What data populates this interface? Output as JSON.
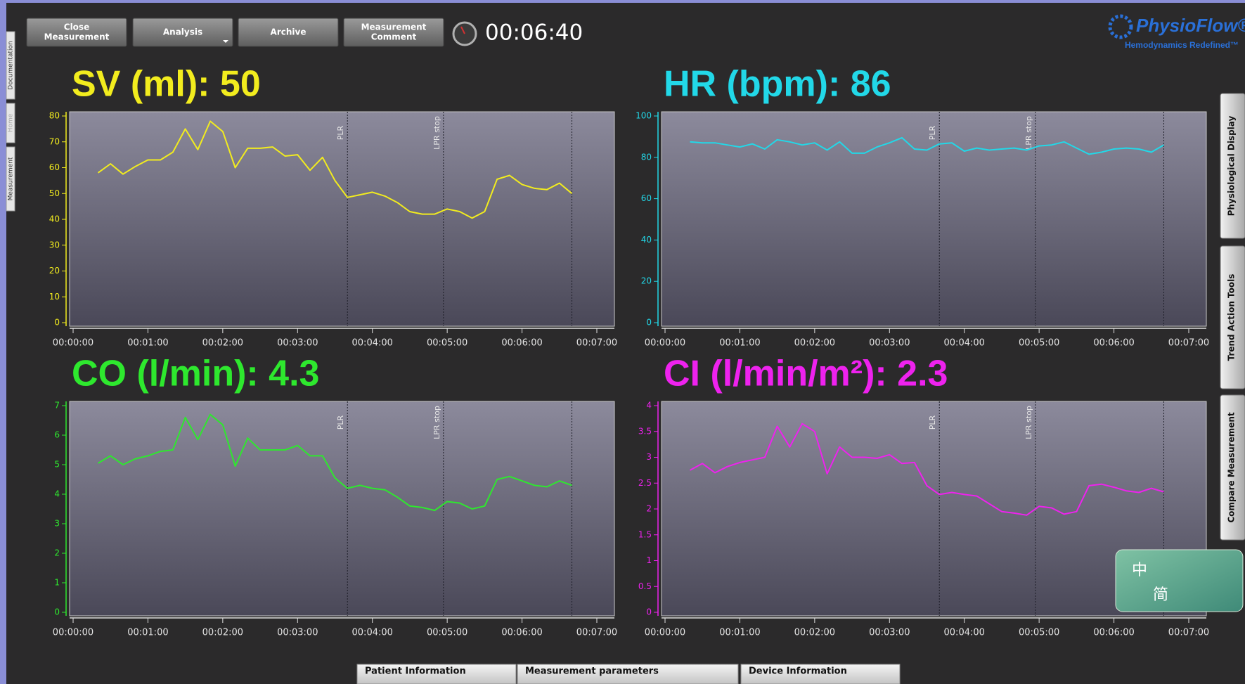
{
  "toolbar": {
    "buttons": [
      [
        "Close",
        "Measurement"
      ],
      [
        "Analysis"
      ],
      [
        "Archive"
      ],
      [
        "Measurement",
        "Comment"
      ]
    ],
    "timer": "00:06:40"
  },
  "logo": {
    "name": "PhysioFlow®",
    "tagline": "Hemodynamics Redefined™"
  },
  "left_tabs": [
    "Documentation",
    "Home",
    "Measurement"
  ],
  "right_tabs": [
    "Physiological Display",
    "Trend Action Tools",
    "Compare Measurement"
  ],
  "bottom_tabs": [
    "Patient Information",
    "Measurement parameters",
    "Device Information"
  ],
  "ime": [
    "中",
    "简"
  ],
  "chart_data": [
    {
      "type": "line",
      "title": "SV (ml): 50",
      "color": "#f2ec1e",
      "x": [
        20,
        30,
        40,
        50,
        60,
        70,
        80,
        90,
        100,
        110,
        120,
        130,
        140,
        150,
        160,
        170,
        180,
        190,
        200,
        210,
        220,
        230,
        240,
        250,
        260,
        270,
        280,
        290,
        300,
        310,
        320,
        330,
        340,
        350,
        360,
        370,
        380,
        390,
        400
      ],
      "values": [
        58,
        61.5,
        57.5,
        60.5,
        63,
        63,
        66,
        75,
        67,
        78,
        74,
        60,
        67.5,
        67.5,
        68,
        64.5,
        65,
        59,
        64,
        55,
        48.5,
        49.5,
        50.5,
        49,
        46.5,
        43,
        42,
        42,
        44,
        43,
        40.5,
        43,
        55.5,
        57,
        53.5,
        52,
        51.5,
        54,
        50
      ],
      "xlim": [
        0,
        420
      ],
      "xticks": [
        {
          "value": 0,
          "label": "00:00:00"
        },
        {
          "value": 60,
          "label": "00:01:00"
        },
        {
          "value": 120,
          "label": "00:02:00"
        },
        {
          "value": 180,
          "label": "00:03:00"
        },
        {
          "value": 240,
          "label": "00:04:00"
        },
        {
          "value": 300,
          "label": "00:05:00"
        },
        {
          "value": 360,
          "label": "00:06:00"
        },
        {
          "value": 420,
          "label": "00:07:00"
        }
      ],
      "ylim": [
        0,
        80
      ],
      "yticks": [
        0,
        10,
        20,
        30,
        40,
        50,
        60,
        70,
        80
      ],
      "markers": [
        {
          "label": "PLR",
          "x": 220
        },
        {
          "label": "LPR stop",
          "x": 297
        }
      ],
      "cursor_x": 400
    },
    {
      "type": "line",
      "title": "HR (bpm): 86",
      "color": "#22d8e8",
      "x": [
        20,
        30,
        40,
        50,
        60,
        70,
        80,
        90,
        100,
        110,
        120,
        130,
        140,
        150,
        160,
        170,
        180,
        190,
        200,
        210,
        220,
        230,
        240,
        250,
        260,
        270,
        280,
        290,
        300,
        310,
        320,
        330,
        340,
        350,
        360,
        370,
        380,
        390,
        400
      ],
      "values": [
        87.5,
        87,
        87,
        86,
        85,
        86.5,
        84,
        88.5,
        87.5,
        86,
        87,
        83.5,
        87.5,
        82,
        82,
        85,
        87,
        89.5,
        84,
        83.5,
        86.5,
        87,
        83,
        84.5,
        83.5,
        84,
        84.5,
        83.5,
        85.5,
        86,
        87.5,
        84.5,
        81.5,
        82.5,
        84,
        84.5,
        84,
        82.5,
        86
      ],
      "xlim": [
        0,
        420
      ],
      "xticks": [
        {
          "value": 0,
          "label": "00:00:00"
        },
        {
          "value": 60,
          "label": "00:01:00"
        },
        {
          "value": 120,
          "label": "00:02:00"
        },
        {
          "value": 180,
          "label": "00:03:00"
        },
        {
          "value": 240,
          "label": "00:04:00"
        },
        {
          "value": 300,
          "label": "00:05:00"
        },
        {
          "value": 360,
          "label": "00:06:00"
        },
        {
          "value": 420,
          "label": "00:07:00"
        }
      ],
      "ylim": [
        0,
        100
      ],
      "yticks": [
        0,
        20,
        40,
        60,
        80,
        100
      ],
      "markers": [
        {
          "label": "PLR",
          "x": 220
        },
        {
          "label": "LPR stop",
          "x": 297
        }
      ],
      "cursor_x": 400
    },
    {
      "type": "line",
      "title": "CO (l/min): 4.3",
      "color": "#2ee82e",
      "x": [
        20,
        30,
        40,
        50,
        60,
        70,
        80,
        90,
        100,
        110,
        120,
        130,
        140,
        150,
        160,
        170,
        180,
        190,
        200,
        210,
        220,
        230,
        240,
        250,
        260,
        270,
        280,
        290,
        300,
        310,
        320,
        330,
        340,
        350,
        360,
        370,
        380,
        390,
        400
      ],
      "values": [
        5.05,
        5.3,
        5.0,
        5.2,
        5.3,
        5.45,
        5.5,
        6.6,
        5.85,
        6.7,
        6.35,
        4.95,
        5.9,
        5.5,
        5.5,
        5.5,
        5.65,
        5.3,
        5.3,
        4.55,
        4.2,
        4.3,
        4.2,
        4.15,
        3.9,
        3.6,
        3.55,
        3.45,
        3.75,
        3.7,
        3.5,
        3.6,
        4.5,
        4.6,
        4.45,
        4.3,
        4.25,
        4.45,
        4.3
      ],
      "xlim": [
        0,
        420
      ],
      "xticks": [
        {
          "value": 0,
          "label": "00:00:00"
        },
        {
          "value": 60,
          "label": "00:01:00"
        },
        {
          "value": 120,
          "label": "00:02:00"
        },
        {
          "value": 180,
          "label": "00:03:00"
        },
        {
          "value": 240,
          "label": "00:04:00"
        },
        {
          "value": 300,
          "label": "00:05:00"
        },
        {
          "value": 360,
          "label": "00:06:00"
        },
        {
          "value": 420,
          "label": "00:07:00"
        }
      ],
      "ylim": [
        0,
        7
      ],
      "yticks": [
        0,
        1,
        2,
        3,
        4,
        5,
        6,
        7
      ],
      "markers": [
        {
          "label": "PLR",
          "x": 220
        },
        {
          "label": "LPR stop",
          "x": 297
        }
      ],
      "cursor_x": 400
    },
    {
      "type": "line",
      "title": "CI (l/min/m²): 2.3",
      "color": "#ee22ee",
      "x": [
        20,
        30,
        40,
        50,
        60,
        70,
        80,
        90,
        100,
        110,
        120,
        130,
        140,
        150,
        160,
        170,
        180,
        190,
        200,
        210,
        220,
        230,
        240,
        250,
        260,
        270,
        280,
        290,
        300,
        310,
        320,
        330,
        340,
        350,
        360,
        370,
        380,
        390,
        400
      ],
      "values": [
        2.75,
        2.88,
        2.7,
        2.82,
        2.9,
        2.95,
        3.0,
        3.6,
        3.2,
        3.65,
        3.5,
        2.68,
        3.2,
        3.0,
        3.0,
        2.98,
        3.05,
        2.88,
        2.9,
        2.45,
        2.28,
        2.32,
        2.28,
        2.25,
        2.1,
        1.95,
        1.92,
        1.88,
        2.05,
        2.02,
        1.9,
        1.95,
        2.45,
        2.48,
        2.42,
        2.35,
        2.32,
        2.4,
        2.33
      ],
      "xlim": [
        0,
        420
      ],
      "xticks": [
        {
          "value": 0,
          "label": "00:00:00"
        },
        {
          "value": 60,
          "label": "00:01:00"
        },
        {
          "value": 120,
          "label": "00:02:00"
        },
        {
          "value": 180,
          "label": "00:03:00"
        },
        {
          "value": 240,
          "label": "00:04:00"
        },
        {
          "value": 300,
          "label": "00:05:00"
        },
        {
          "value": 360,
          "label": "00:06:00"
        },
        {
          "value": 420,
          "label": "00:07:00"
        }
      ],
      "ylim": [
        0,
        4
      ],
      "yticks": [
        0,
        0.5,
        1,
        1.5,
        2,
        2.5,
        3,
        3.5,
        4
      ],
      "markers": [
        {
          "label": "PLR",
          "x": 220
        },
        {
          "label": "LPR stop",
          "x": 297
        }
      ],
      "cursor_x": 400
    }
  ]
}
